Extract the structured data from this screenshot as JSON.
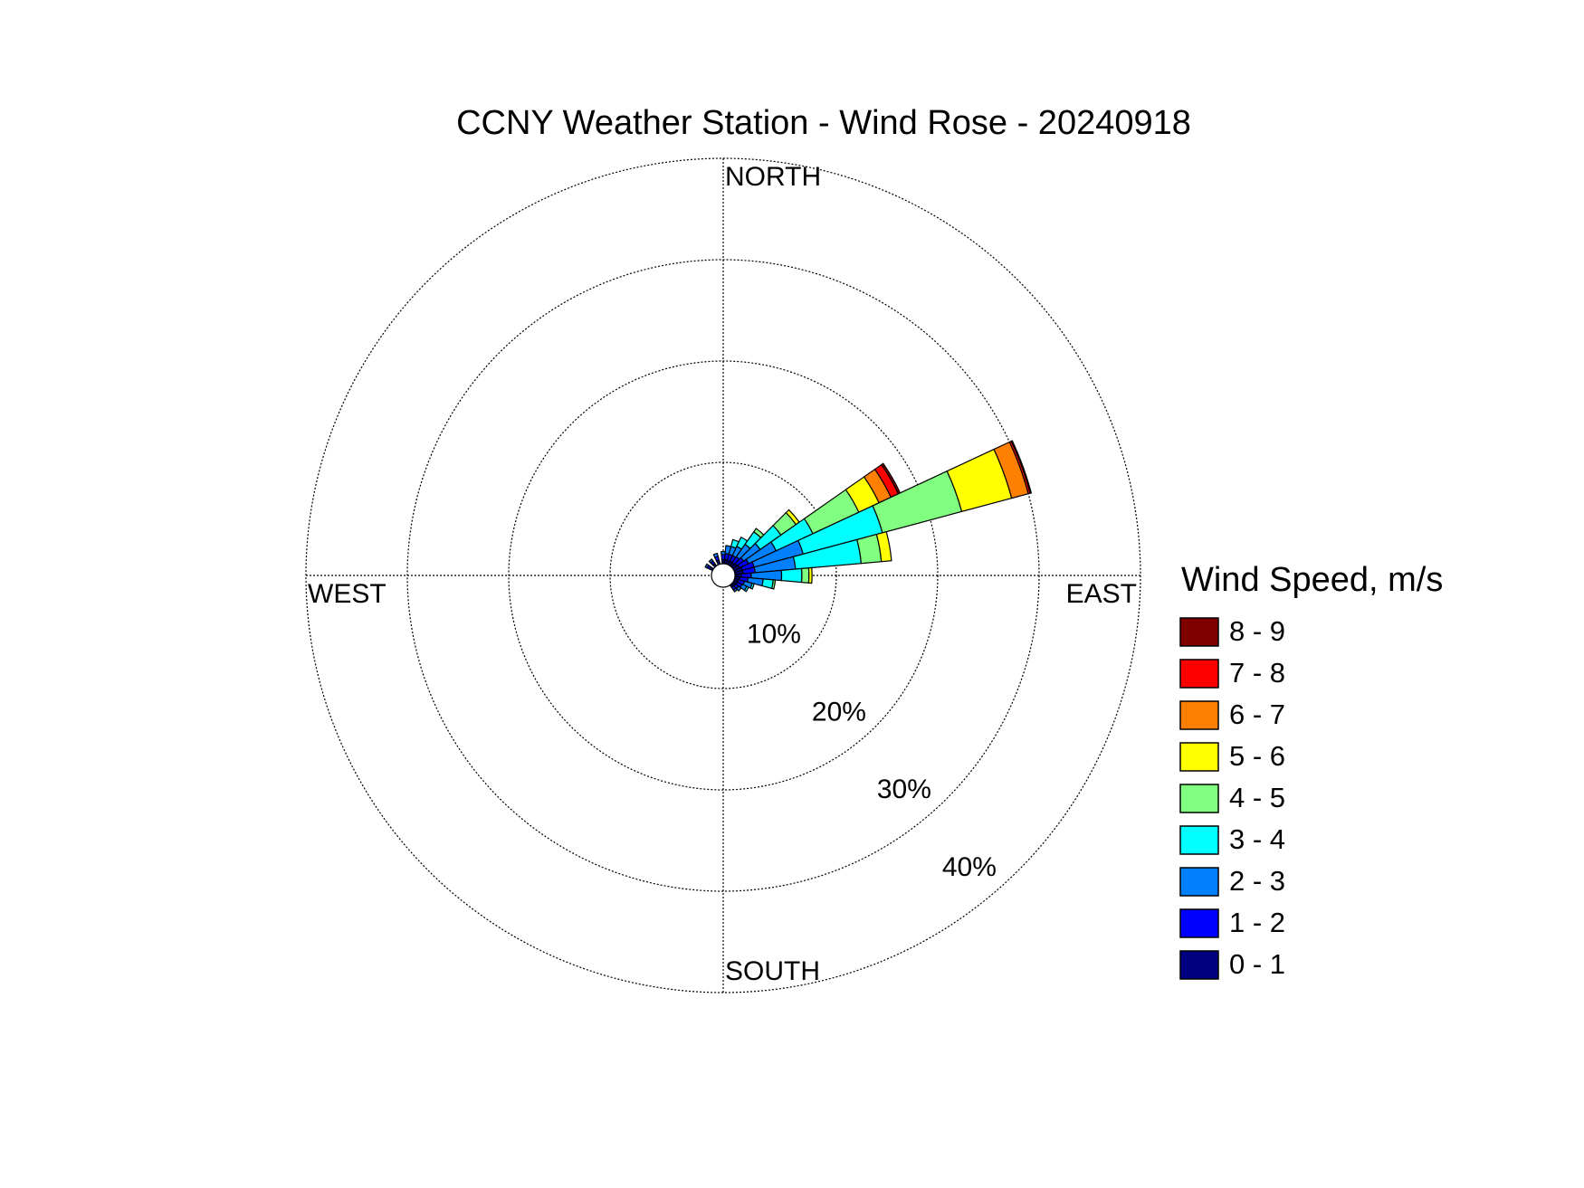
{
  "chart_data": {
    "type": "windrose",
    "title": "CCNY Weather Station - Wind Rose - 20240918",
    "direction_labels": {
      "north": "NORTH",
      "east": "EAST",
      "south": "SOUTH",
      "west": "WEST"
    },
    "legend_title": "Wind Speed, m/s",
    "directions": [
      0,
      10,
      20,
      30,
      40,
      50,
      60,
      70,
      80,
      90,
      100,
      110,
      120,
      130,
      140,
      300,
      320,
      340
    ],
    "sector_width": 10,
    "rlim": [
      0,
      40
    ],
    "rticks": [
      {
        "value": 10,
        "label": "10%"
      },
      {
        "value": 20,
        "label": "20%"
      },
      {
        "value": 30,
        "label": "30%"
      },
      {
        "value": 40,
        "label": "40%"
      }
    ],
    "series": [
      {
        "name": "0 - 1",
        "color": "#000080",
        "values": [
          0.4,
          0.4,
          0.4,
          0.4,
          0.4,
          0.5,
          0.6,
          0.8,
          0.8,
          0.6,
          0.5,
          0.4,
          0.4,
          0.3,
          0.3,
          0.3,
          0.3,
          0.4
        ]
      },
      {
        "name": "1 - 2",
        "color": "#0000ff",
        "values": [
          0.5,
          0.6,
          0.6,
          0.6,
          0.7,
          0.8,
          1.0,
          1.2,
          1.2,
          1.0,
          0.8,
          0.6,
          0.5,
          0.4,
          0.3,
          0.3,
          0.3,
          0.4
        ]
      },
      {
        "name": "2 - 3",
        "color": "#0080ff",
        "values": [
          0.3,
          0.8,
          0.8,
          1.0,
          1.5,
          2.0,
          3.0,
          5.0,
          4.0,
          3.0,
          1.5,
          0.8,
          0.5,
          0.3,
          0.2,
          0.2,
          0.2,
          0.3
        ]
      },
      {
        "name": "3 - 4",
        "color": "#00ffff",
        "values": [
          0,
          0,
          0.7,
          1.0,
          1.5,
          2.5,
          4.0,
          8.1,
          6.5,
          2.0,
          1.0,
          0.2,
          0.2,
          0,
          0,
          0,
          0,
          0
        ]
      },
      {
        "name": "4 - 5",
        "color": "#80ff80",
        "values": [
          0,
          0,
          0,
          0,
          0.4,
          1.8,
          5.0,
          8.1,
          2.0,
          0.7,
          0.2,
          0,
          0,
          0,
          0,
          0,
          0,
          0
        ]
      },
      {
        "name": "5 - 6",
        "color": "#ffff00",
        "values": [
          0,
          0,
          0,
          0,
          0,
          0.4,
          2.2,
          5.1,
          1.0,
          0.3,
          0,
          0,
          0,
          0,
          0,
          0,
          0,
          0
        ]
      },
      {
        "name": "6 - 7",
        "color": "#ff8000",
        "values": [
          0,
          0,
          0,
          0,
          0,
          0,
          1.3,
          1.7,
          0,
          0,
          0,
          0,
          0,
          0,
          0,
          0,
          0,
          0
        ]
      },
      {
        "name": "7 - 8",
        "color": "#ff0000",
        "values": [
          0,
          0,
          0,
          0,
          0,
          0,
          0.8,
          0.2,
          0,
          0,
          0,
          0,
          0,
          0,
          0,
          0,
          0,
          0
        ]
      },
      {
        "name": "8 - 9",
        "color": "#800000",
        "values": [
          0,
          0,
          0,
          0,
          0,
          0,
          0.2,
          0.1,
          0,
          0,
          0,
          0,
          0,
          0,
          0,
          0,
          0,
          0
        ]
      }
    ]
  }
}
